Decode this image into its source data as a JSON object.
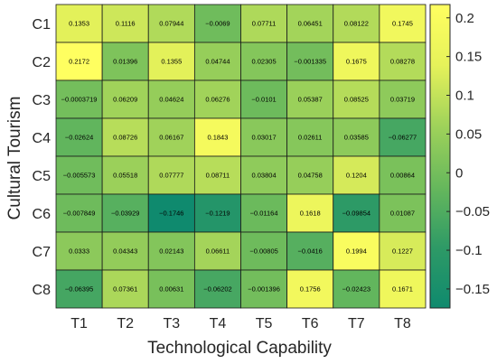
{
  "chart_data": {
    "type": "heatmap",
    "xlabel": "Technological Capability",
    "ylabel": "Cultural Tourism",
    "x_categories": [
      "T1",
      "T2",
      "T3",
      "T4",
      "T5",
      "T6",
      "T7",
      "T8"
    ],
    "y_categories": [
      "C1",
      "C2",
      "C3",
      "C4",
      "C5",
      "C6",
      "C7",
      "C8"
    ],
    "values": [
      [
        "0.1353",
        "0.1116",
        "0.07944",
        "−0.0069",
        "0.07711",
        "0.06451",
        "0.08122",
        "0.1745"
      ],
      [
        "0.2172",
        "0.01396",
        "0.1355",
        "0.04744",
        "0.02305",
        "−0.001335",
        "0.1675",
        "0.08278"
      ],
      [
        "−0.0003719",
        "0.06209",
        "0.04624",
        "0.06276",
        "−0.0101",
        "0.05387",
        "0.08525",
        "0.03719"
      ],
      [
        "−0.02624",
        "0.08726",
        "0.06167",
        "0.1843",
        "0.03017",
        "0.02611",
        "0.03585",
        "−0.06277"
      ],
      [
        "−0.005573",
        "0.05518",
        "0.07777",
        "0.08711",
        "0.03804",
        "0.04758",
        "0.1204",
        "0.00864"
      ],
      [
        "−0.007849",
        "−0.03929",
        "−0.1746",
        "−0.1219",
        "−0.01164",
        "0.1618",
        "−0.09854",
        "0.01087"
      ],
      [
        "0.0333",
        "0.04343",
        "0.02143",
        "0.06611",
        "−0.00805",
        "−0.0416",
        "0.1994",
        "0.1227"
      ],
      [
        "−0.06395",
        "0.07361",
        "0.00631",
        "−0.06202",
        "−0.001396",
        "0.1756",
        "−0.02423",
        "0.1671"
      ]
    ],
    "colorbar": {
      "range": [
        -0.1746,
        0.2172
      ],
      "ticks": [
        "0.2",
        "0.15",
        "0.1",
        "0.05",
        "0",
        "−0.05",
        "−0.1",
        "−0.15"
      ],
      "colormap": "summer-to-yellow",
      "colors": [
        "#0f8a6e",
        "#2e9a66",
        "#67b85c",
        "#9fd25a",
        "#e6f25a",
        "#ffff60"
      ]
    }
  }
}
